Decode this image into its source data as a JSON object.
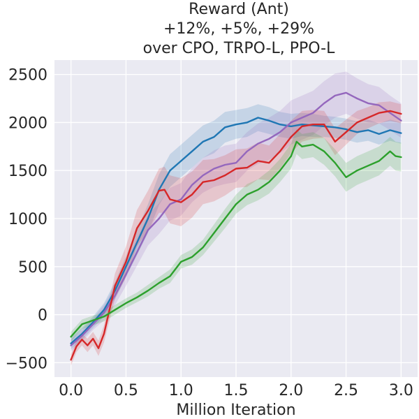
{
  "chart_data": {
    "type": "line",
    "title_lines": [
      "Reward (Ant)",
      "+12%, +5%, +29%",
      "over CPO, TRPO-L, PPO-L"
    ],
    "xlabel": "Million Iteration",
    "ylabel": "",
    "xlim": [
      -0.15,
      3.15
    ],
    "ylim": [
      -650,
      2650
    ],
    "x_ticks": [
      0.0,
      0.5,
      1.0,
      1.5,
      2.0,
      2.5,
      3.0
    ],
    "x_tick_labels": [
      "0.0",
      "0.5",
      "1.0",
      "1.5",
      "2.0",
      "2.5",
      "3.0"
    ],
    "y_ticks": [
      -500,
      0,
      500,
      1000,
      1500,
      2000,
      2500
    ],
    "y_tick_labels": [
      "−500",
      "0",
      "500",
      "1000",
      "1500",
      "2000",
      "2500"
    ],
    "grid": true,
    "legend": "none",
    "series": [
      {
        "color": "#1f77b4",
        "x": [
          0.0,
          0.1,
          0.2,
          0.3,
          0.4,
          0.5,
          0.6,
          0.7,
          0.8,
          0.9,
          1.0,
          1.1,
          1.2,
          1.3,
          1.4,
          1.5,
          1.6,
          1.7,
          1.8,
          1.9,
          2.0,
          2.1,
          2.2,
          2.3,
          2.4,
          2.5,
          2.6,
          2.7,
          2.8,
          2.9,
          3.0
        ],
        "y": [
          -300,
          -200,
          -80,
          50,
          250,
          500,
          750,
          1000,
          1300,
          1500,
          1600,
          1700,
          1800,
          1850,
          1950,
          1980,
          2000,
          2050,
          2020,
          1980,
          1960,
          1980,
          1970,
          1960,
          1950,
          1930,
          1900,
          1920,
          1880,
          1920,
          1890
        ],
        "band": [
          60,
          60,
          60,
          70,
          90,
          110,
          130,
          150,
          160,
          170,
          170,
          170,
          170,
          170,
          160,
          150,
          150,
          140,
          140,
          130,
          130,
          120,
          120,
          110,
          110,
          110,
          110,
          110,
          110,
          110,
          110
        ]
      },
      {
        "color": "#9467bd",
        "x": [
          0.0,
          0.1,
          0.2,
          0.3,
          0.4,
          0.5,
          0.6,
          0.7,
          0.8,
          0.9,
          1.0,
          1.1,
          1.2,
          1.3,
          1.4,
          1.5,
          1.6,
          1.7,
          1.8,
          1.9,
          2.0,
          2.1,
          2.2,
          2.3,
          2.4,
          2.5,
          2.6,
          2.7,
          2.8,
          2.9,
          3.0
        ],
        "y": [
          -320,
          -220,
          -100,
          20,
          200,
          420,
          650,
          880,
          1000,
          1150,
          1200,
          1350,
          1450,
          1520,
          1560,
          1580,
          1700,
          1780,
          1830,
          1900,
          2000,
          2050,
          2100,
          2200,
          2280,
          2310,
          2250,
          2200,
          2180,
          2100,
          2020
        ],
        "band": [
          60,
          60,
          60,
          80,
          100,
          120,
          140,
          160,
          160,
          170,
          170,
          180,
          180,
          190,
          200,
          200,
          200,
          210,
          220,
          220,
          230,
          230,
          230,
          230,
          230,
          220,
          210,
          200,
          190,
          180,
          180
        ]
      },
      {
        "color": "#d62728",
        "x": [
          0.0,
          0.05,
          0.1,
          0.15,
          0.2,
          0.25,
          0.3,
          0.35,
          0.4,
          0.5,
          0.6,
          0.7,
          0.8,
          0.85,
          0.9,
          1.0,
          1.1,
          1.2,
          1.3,
          1.4,
          1.5,
          1.6,
          1.7,
          1.8,
          1.9,
          2.0,
          2.1,
          2.2,
          2.3,
          2.4,
          2.5,
          2.6,
          2.7,
          2.8,
          2.9,
          3.0
        ],
        "y": [
          -470,
          -330,
          -260,
          -320,
          -250,
          -350,
          -200,
          50,
          300,
          550,
          900,
          1080,
          1290,
          1300,
          1200,
          1170,
          1250,
          1380,
          1400,
          1450,
          1520,
          1530,
          1600,
          1580,
          1700,
          1850,
          1960,
          1980,
          1980,
          1800,
          1900,
          2000,
          2050,
          2100,
          2120,
          2090
        ],
        "band": [
          60,
          60,
          60,
          70,
          70,
          80,
          90,
          110,
          130,
          160,
          190,
          210,
          230,
          240,
          250,
          250,
          240,
          230,
          220,
          210,
          200,
          200,
          190,
          180,
          180,
          170,
          160,
          150,
          140,
          140,
          130,
          120,
          110,
          110,
          100,
          100
        ]
      },
      {
        "color": "#2ca02c",
        "x": [
          0.0,
          0.1,
          0.2,
          0.3,
          0.4,
          0.5,
          0.6,
          0.7,
          0.8,
          0.9,
          1.0,
          1.1,
          1.2,
          1.3,
          1.4,
          1.5,
          1.6,
          1.7,
          1.8,
          1.9,
          2.0,
          2.05,
          2.1,
          2.2,
          2.3,
          2.4,
          2.5,
          2.6,
          2.7,
          2.8,
          2.9,
          2.95,
          3.0
        ],
        "y": [
          -230,
          -100,
          -60,
          -20,
          50,
          120,
          180,
          250,
          330,
          400,
          550,
          600,
          700,
          850,
          1000,
          1150,
          1250,
          1300,
          1380,
          1500,
          1650,
          1800,
          1750,
          1770,
          1700,
          1580,
          1430,
          1500,
          1550,
          1600,
          1700,
          1650,
          1640
        ],
        "band": [
          50,
          50,
          50,
          50,
          50,
          50,
          50,
          60,
          60,
          70,
          70,
          80,
          80,
          90,
          100,
          100,
          110,
          110,
          120,
          120,
          130,
          130,
          130,
          130,
          140,
          140,
          150,
          150,
          150,
          150,
          150,
          150,
          150
        ]
      }
    ]
  }
}
